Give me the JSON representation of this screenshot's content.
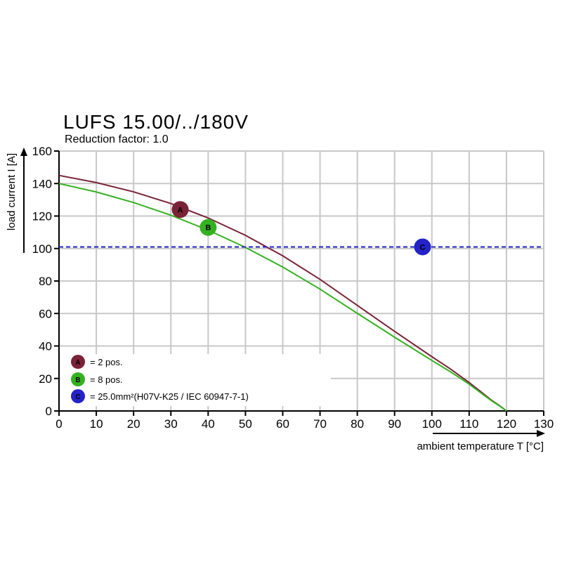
{
  "title": "LUFS 15.00/../180V",
  "subtitle": "Reduction factor: 1.0",
  "colors": {
    "A": "#7a2338",
    "B": "#33b11f",
    "C": "#2323c8",
    "grid": "#c8c8c8"
  },
  "chart_data": {
    "type": "line",
    "xlabel": "ambient temperature T [°C]",
    "ylabel": "load current I [A]",
    "xlim": [
      0,
      130
    ],
    "ylim": [
      0,
      160
    ],
    "x_ticks": [
      "0",
      "10",
      "20",
      "30",
      "40",
      "50",
      "60",
      "70",
      "80",
      "90",
      "100",
      "110",
      "120",
      "130"
    ],
    "y_ticks": [
      "0",
      "20",
      "40",
      "60",
      "80",
      "100",
      "120",
      "140",
      "160"
    ],
    "grid": true,
    "series": [
      {
        "marker": "A",
        "x": [
          0,
          10,
          20,
          30,
          40,
          50,
          60,
          70,
          80,
          90,
          100,
          105,
          110,
          113,
          116,
          118,
          119,
          120
        ],
        "y": [
          145,
          140.6,
          134.9,
          127.7,
          118.8,
          108.1,
          95.5,
          81,
          65,
          49,
          33.4,
          25.8,
          17.5,
          12.1,
          6.6,
          3.5,
          1.8,
          0
        ],
        "marker_at": [
          32.5,
          124
        ]
      },
      {
        "marker": "B",
        "x": [
          0,
          10,
          20,
          30,
          40,
          50,
          60,
          70,
          80,
          90,
          100,
          105,
          110,
          113,
          116,
          118,
          119,
          120
        ],
        "y": [
          140,
          134.8,
          128.3,
          120.5,
          111.3,
          100.7,
          88.6,
          75,
          60.1,
          45.4,
          31.1,
          24.1,
          16.5,
          11.4,
          6.3,
          3.3,
          1.7,
          0
        ],
        "marker_at": [
          40,
          113
        ]
      },
      {
        "marker": "C",
        "style": "dashed",
        "x": [
          0,
          130
        ],
        "y": [
          101,
          101
        ],
        "marker_at": [
          97.5,
          101
        ]
      }
    ],
    "legend": [
      {
        "marker": "A",
        "text": "= 2 pos."
      },
      {
        "marker": "B",
        "text": "= 8 pos."
      },
      {
        "marker": "C",
        "text": "= 25.0mm²(H07V-K25 / IEC 60947-7-1)"
      }
    ],
    "legend_position": "bottom-left"
  }
}
